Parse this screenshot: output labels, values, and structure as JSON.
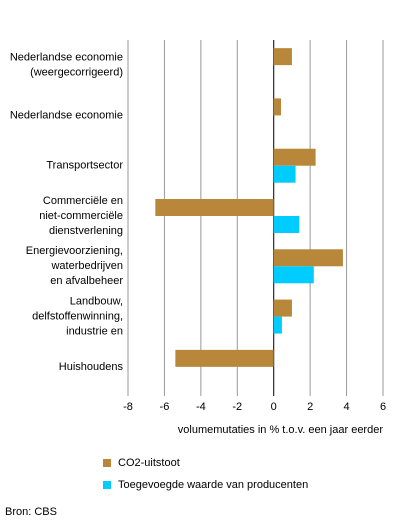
{
  "chart_data": {
    "type": "hbar",
    "categories": [
      [
        "Nederlandse economie",
        "(weergecorrigeerd)"
      ],
      [
        "Nederlandse economie"
      ],
      [
        "Transportsector"
      ],
      [
        "Commerciële en",
        "niet-commerciële",
        "dienstverlening"
      ],
      [
        "Energievoorziening,",
        "waterbedrijven",
        "en afvalbeheer"
      ],
      [
        "Landbouw,",
        "delfstoffenwinning,",
        "industrie en"
      ],
      [
        "Huishoudens"
      ]
    ],
    "series": [
      {
        "name": "CO2-uitstoot",
        "color": "#b8873a",
        "values": [
          1.0,
          0.4,
          2.3,
          -6.5,
          3.8,
          1.0,
          -5.4
        ]
      },
      {
        "name": "Toegevoegde waarde van producenten",
        "color": "#00ccff",
        "values": [
          null,
          null,
          1.2,
          1.4,
          2.2,
          0.45,
          null
        ]
      }
    ],
    "xlim": [
      -8,
      6
    ],
    "xticks": [
      -8,
      -6,
      -4,
      -2,
      0,
      2,
      4,
      6
    ],
    "grid": true,
    "xlabel": "volumemutaties in % t.o.v. een jaar eerder",
    "source": "Bron: CBS"
  }
}
